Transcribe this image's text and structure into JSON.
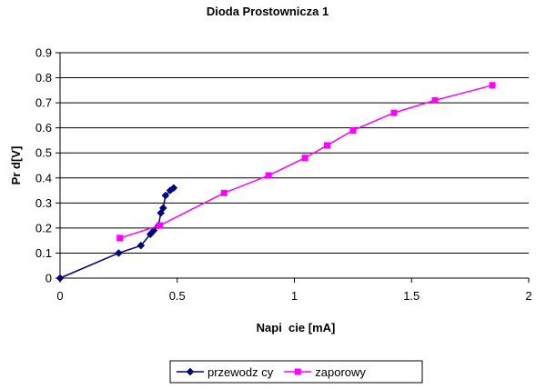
{
  "chart_data": {
    "type": "line",
    "title": "Dioda Prostownicza 1",
    "xlabel": "Napi  cie [mA]",
    "ylabel": "Pr d[V]",
    "xlim": [
      0,
      2
    ],
    "ylim": [
      0,
      0.9
    ],
    "xticks": [
      "0",
      "0.5",
      "1",
      "1.5",
      "2"
    ],
    "yticks": [
      "0",
      "0.1",
      "0.2",
      "0.3",
      "0.4",
      "0.5",
      "0.6",
      "0.7",
      "0.8",
      "0.9"
    ],
    "grid": true,
    "legend_position": "bottom",
    "series": [
      {
        "name": "przewodz  cy",
        "color": "#000080",
        "marker": "diamond",
        "points": [
          [
            0.0,
            0.0
          ],
          [
            0.25,
            0.1
          ],
          [
            0.345,
            0.13
          ],
          [
            0.385,
            0.175
          ],
          [
            0.4,
            0.19
          ],
          [
            0.42,
            0.21
          ],
          [
            0.43,
            0.26
          ],
          [
            0.44,
            0.28
          ],
          [
            0.45,
            0.33
          ],
          [
            0.47,
            0.35
          ],
          [
            0.485,
            0.36
          ]
        ]
      },
      {
        "name": "zaporowy",
        "color": "#ff00ff",
        "marker": "square",
        "points": [
          [
            0.255,
            0.16
          ],
          [
            0.425,
            0.21
          ],
          [
            0.7,
            0.34
          ],
          [
            0.89,
            0.41
          ],
          [
            1.045,
            0.48
          ],
          [
            1.14,
            0.53
          ],
          [
            1.25,
            0.59
          ],
          [
            1.425,
            0.66
          ],
          [
            1.6,
            0.71
          ],
          [
            1.845,
            0.77
          ]
        ]
      }
    ]
  }
}
